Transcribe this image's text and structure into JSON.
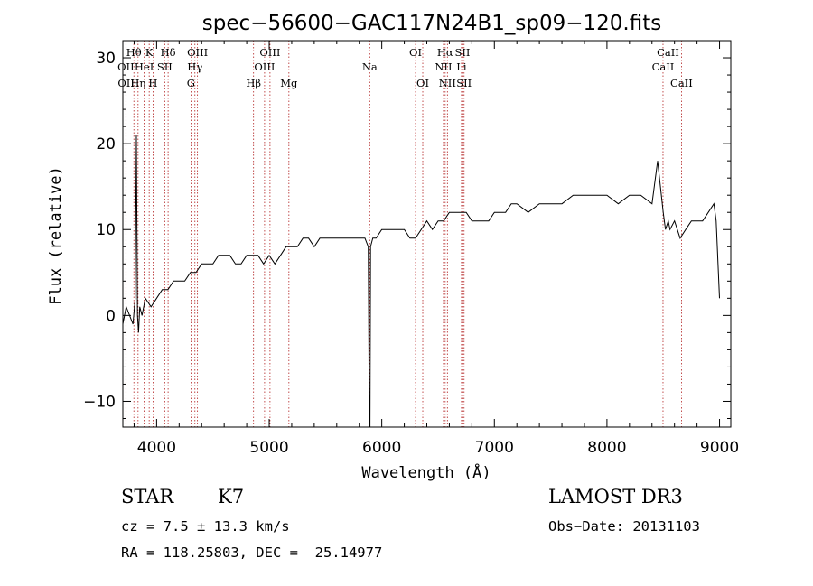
{
  "chart_data": {
    "type": "line",
    "title": "spec−56600−GAC117N24B1_sp09−120.fits",
    "xlabel": "Wavelength (Å)",
    "ylabel": "Flux (relative)",
    "xlim": [
      3700,
      9100
    ],
    "ylim": [
      -13,
      32
    ],
    "xticks": [
      4000,
      5000,
      6000,
      7000,
      8000,
      9000
    ],
    "yticks": [
      -10,
      0,
      10,
      20,
      30
    ],
    "series": [
      {
        "x": [
          3700,
          3730,
          3760,
          3790,
          3810,
          3820,
          3830,
          3840,
          3850,
          3870,
          3900,
          3950,
          4000,
          4050,
          4100,
          4150,
          4200,
          4250,
          4300,
          4350,
          4400,
          4450,
          4500,
          4550,
          4600,
          4650,
          4700,
          4750,
          4800,
          4850,
          4900,
          4950,
          5000,
          5050,
          5100,
          5150,
          5200,
          5250,
          5300,
          5350,
          5400,
          5450,
          5500,
          5550,
          5600,
          5650,
          5700,
          5750,
          5800,
          5850,
          5880,
          5890,
          5895,
          5900,
          5920,
          5950,
          6000,
          6050,
          6100,
          6150,
          6200,
          6250,
          6300,
          6350,
          6400,
          6450,
          6500,
          6550,
          6600,
          6650,
          6700,
          6750,
          6800,
          6850,
          6900,
          6950,
          7000,
          7050,
          7100,
          7150,
          7200,
          7300,
          7400,
          7500,
          7600,
          7700,
          7800,
          7900,
          8000,
          8100,
          8200,
          8300,
          8400,
          8450,
          8500,
          8520,
          8545,
          8560,
          8600,
          8650,
          8700,
          8750,
          8800,
          8850,
          8900,
          8950,
          8970,
          9000
        ],
        "y": [
          -1,
          1,
          0,
          -1,
          2,
          21,
          0,
          -2,
          1,
          0,
          2,
          1,
          2,
          3,
          3,
          4,
          4,
          4,
          5,
          5,
          6,
          6,
          6,
          7,
          7,
          7,
          6,
          6,
          7,
          7,
          7,
          6,
          7,
          6,
          7,
          8,
          8,
          8,
          9,
          9,
          8,
          9,
          9,
          9,
          9,
          9,
          9,
          9,
          9,
          9,
          8,
          -13,
          -13,
          8,
          9,
          9,
          10,
          10,
          10,
          10,
          10,
          9,
          9,
          10,
          11,
          10,
          11,
          11,
          12,
          12,
          12,
          12,
          11,
          11,
          11,
          11,
          12,
          12,
          12,
          13,
          13,
          12,
          13,
          13,
          13,
          14,
          14,
          14,
          14,
          13,
          14,
          14,
          13,
          18,
          12,
          10,
          11,
          10,
          11,
          9,
          10,
          11,
          11,
          11,
          12,
          13,
          11,
          2
        ]
      }
    ],
    "line_markers": [
      {
        "label": "Hθ",
        "x": 3798,
        "row": 1
      },
      {
        "label": "Hη",
        "x": 3835,
        "row": 3
      },
      {
        "label": "K",
        "x": 3934,
        "row": 1
      },
      {
        "label": "H",
        "x": 3968,
        "row": 3
      },
      {
        "label": "Hδ",
        "x": 4102,
        "row": 1
      },
      {
        "label": "OIII",
        "x": 4363,
        "row": 1
      },
      {
        "label": "Hγ",
        "x": 4340,
        "row": 2
      },
      {
        "label": "G",
        "x": 4305,
        "row": 3
      },
      {
        "label": "Hβ",
        "x": 4861,
        "row": 3
      },
      {
        "label": "OIII",
        "x": 5007,
        "row": 1
      },
      {
        "label": "OIII",
        "x": 4959,
        "row": 2
      },
      {
        "label": "Mg",
        "x": 5175,
        "row": 3
      },
      {
        "label": "Na",
        "x": 5893,
        "row": 2
      },
      {
        "label": "OI",
        "x": 6300,
        "row": 1
      },
      {
        "label": "OI",
        "x": 6364,
        "row": 3
      },
      {
        "label": "Hα",
        "x": 6563,
        "row": 1
      },
      {
        "label": "NII",
        "x": 6548,
        "row": 2
      },
      {
        "label": "NII",
        "x": 6583,
        "row": 3
      },
      {
        "label": "SII",
        "x": 6717,
        "row": 1
      },
      {
        "label": "Li",
        "x": 6708,
        "row": 2
      },
      {
        "label": "SII",
        "x": 6731,
        "row": 3
      },
      {
        "label": "CaII",
        "x": 8542,
        "row": 1
      },
      {
        "label": "CaII",
        "x": 8498,
        "row": 2
      },
      {
        "label": "CaII",
        "x": 8662,
        "row": 3
      },
      {
        "label": "OII",
        "x": 3727,
        "row": 2
      },
      {
        "label": "OII",
        "x": 3729,
        "row": 3
      },
      {
        "label": "HeI",
        "x": 3889,
        "row": 2
      },
      {
        "label": "SII",
        "x": 4072,
        "row": 2
      }
    ]
  },
  "info": {
    "object_class": "STAR",
    "subclass": "K7",
    "survey": "LAMOST DR3",
    "redshift_text": "cz = 7.5 ± 13.3 km/s",
    "obs_date_text": "Obs−Date: 20131103",
    "coords_text": "RA = 118.25803, DEC =  25.14977"
  }
}
